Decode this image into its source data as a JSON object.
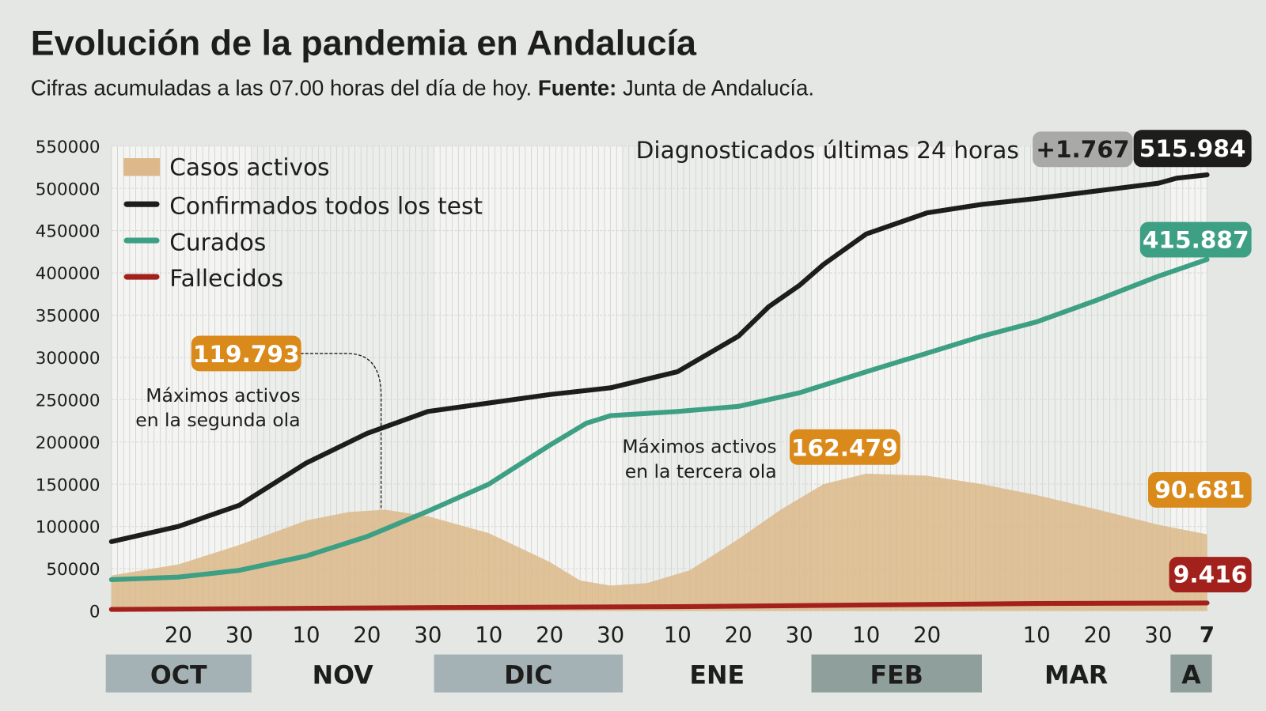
{
  "header": {
    "title": "Evolución de la pandemia en Andalucía",
    "subtitle_text": "Cifras acumuladas a las 07.00 horas del día de hoy. ",
    "subtitle_source_label": "Fuente:",
    "subtitle_source": " Junta de Andalucía."
  },
  "chart_data": {
    "type": "area+line",
    "x_range": [
      "2020-10-09",
      "2021-04-07"
    ],
    "ylim": [
      0,
      550000
    ],
    "y_ticks": [
      "550000",
      "500000",
      "450000",
      "400000",
      "350000",
      "300000",
      "250000",
      "200000",
      "150000",
      "100000",
      "50000",
      "0"
    ],
    "grid": "vertical daily lines, horizontal at each tick",
    "x_ticks": [
      {
        "date": "2020-10-20",
        "label": "20"
      },
      {
        "date": "2020-10-30",
        "label": "30"
      },
      {
        "date": "2020-11-10",
        "label": "10"
      },
      {
        "date": "2020-11-20",
        "label": "20"
      },
      {
        "date": "2020-11-30",
        "label": "30"
      },
      {
        "date": "2020-12-10",
        "label": "10"
      },
      {
        "date": "2020-12-20",
        "label": "20"
      },
      {
        "date": "2020-12-30",
        "label": "30"
      },
      {
        "date": "2021-01-10",
        "label": "10"
      },
      {
        "date": "2021-01-20",
        "label": "20"
      },
      {
        "date": "2021-01-30",
        "label": "30"
      },
      {
        "date": "2021-02-10",
        "label": "10"
      },
      {
        "date": "2021-02-20",
        "label": "20"
      },
      {
        "date": "2021-03-10",
        "label": "10"
      },
      {
        "date": "2021-03-20",
        "label": "20"
      },
      {
        "date": "2021-03-30",
        "label": "30"
      },
      {
        "date": "2021-04-07",
        "label": "7",
        "bold": true
      }
    ],
    "months": [
      {
        "label": "OCT",
        "start": "2020-10-01",
        "end": "2020-10-31",
        "shaded": true
      },
      {
        "label": "NOV",
        "start": "2020-11-01",
        "end": "2020-11-30",
        "shaded": false
      },
      {
        "label": "DIC",
        "start": "2020-12-01",
        "end": "2020-12-31",
        "shaded": true
      },
      {
        "label": "ENE",
        "start": "2021-01-01",
        "end": "2021-01-31",
        "shaded": false
      },
      {
        "label": "FEB",
        "start": "2021-02-01",
        "end": "2021-02-28",
        "shaded": true
      },
      {
        "label": "MAR",
        "start": "2021-03-01",
        "end": "2021-03-31",
        "shaded": false
      },
      {
        "label": "A",
        "start": "2021-04-01",
        "end": "2021-04-07",
        "shaded": true
      }
    ],
    "legend_placement": "top-left",
    "series": [
      {
        "name": "Casos activos",
        "kind": "area",
        "color": "#dcb88a",
        "points": [
          [
            "2020-10-09",
            42000
          ],
          [
            "2020-10-20",
            55000
          ],
          [
            "2020-10-30",
            78000
          ],
          [
            "2020-11-10",
            107000
          ],
          [
            "2020-11-17",
            117000
          ],
          [
            "2020-11-23",
            119793
          ],
          [
            "2020-11-30",
            112000
          ],
          [
            "2020-12-10",
            92000
          ],
          [
            "2020-12-20",
            58000
          ],
          [
            "2020-12-25",
            36000
          ],
          [
            "2020-12-30",
            30000
          ],
          [
            "2021-01-05",
            33000
          ],
          [
            "2021-01-12",
            48000
          ],
          [
            "2021-01-20",
            85000
          ],
          [
            "2021-01-27",
            120000
          ],
          [
            "2021-02-03",
            150000
          ],
          [
            "2021-02-10",
            162479
          ],
          [
            "2021-02-20",
            160000
          ],
          [
            "2021-03-01",
            150000
          ],
          [
            "2021-03-10",
            137000
          ],
          [
            "2021-03-20",
            120000
          ],
          [
            "2021-03-30",
            102000
          ],
          [
            "2021-04-07",
            90681
          ]
        ]
      },
      {
        "name": "Confirmados todos los test",
        "kind": "line",
        "color": "#1d1d1b",
        "points": [
          [
            "2020-10-09",
            82000
          ],
          [
            "2020-10-20",
            100000
          ],
          [
            "2020-10-30",
            125000
          ],
          [
            "2020-11-10",
            175000
          ],
          [
            "2020-11-20",
            210000
          ],
          [
            "2020-11-30",
            236000
          ],
          [
            "2020-12-10",
            246000
          ],
          [
            "2020-12-20",
            256000
          ],
          [
            "2020-12-30",
            264000
          ],
          [
            "2021-01-10",
            283000
          ],
          [
            "2021-01-20",
            325000
          ],
          [
            "2021-01-25",
            360000
          ],
          [
            "2021-01-30",
            385000
          ],
          [
            "2021-02-03",
            410000
          ],
          [
            "2021-02-10",
            446000
          ],
          [
            "2021-02-20",
            471000
          ],
          [
            "2021-03-01",
            481000
          ],
          [
            "2021-03-10",
            488000
          ],
          [
            "2021-03-20",
            497000
          ],
          [
            "2021-03-30",
            506000
          ],
          [
            "2021-04-02",
            512000
          ],
          [
            "2021-04-07",
            515984
          ]
        ]
      },
      {
        "name": "Curados",
        "kind": "line",
        "color": "#3d9f83",
        "points": [
          [
            "2020-10-09",
            37000
          ],
          [
            "2020-10-20",
            40000
          ],
          [
            "2020-10-30",
            48000
          ],
          [
            "2020-11-10",
            65000
          ],
          [
            "2020-11-20",
            88000
          ],
          [
            "2020-11-30",
            118000
          ],
          [
            "2020-12-10",
            150000
          ],
          [
            "2020-12-20",
            196000
          ],
          [
            "2020-12-26",
            222000
          ],
          [
            "2020-12-30",
            231000
          ],
          [
            "2021-01-10",
            236000
          ],
          [
            "2021-01-20",
            242000
          ],
          [
            "2021-01-30",
            258000
          ],
          [
            "2021-02-10",
            283000
          ],
          [
            "2021-02-20",
            305000
          ],
          [
            "2021-03-01",
            325000
          ],
          [
            "2021-03-10",
            342000
          ],
          [
            "2021-03-20",
            368000
          ],
          [
            "2021-03-30",
            396000
          ],
          [
            "2021-04-07",
            415887
          ]
        ]
      },
      {
        "name": "Fallecidos",
        "kind": "line",
        "color": "#a3211c",
        "points": [
          [
            "2020-10-09",
            1800
          ],
          [
            "2020-12-01",
            4000
          ],
          [
            "2021-01-10",
            5000
          ],
          [
            "2021-02-10",
            7000
          ],
          [
            "2021-03-10",
            8800
          ],
          [
            "2021-04-07",
            9416
          ]
        ]
      }
    ],
    "annotations": {
      "peak2_value": "119.793",
      "peak2_line1": "Máximos activos",
      "peak2_line2": "en la segunda ola",
      "peak3_value": "162.479",
      "peak3_line1": "Máximos activos",
      "peak3_line2": "en la tercera ola",
      "daily_label": "Diagnosticados últimas 24 horas",
      "daily_value": "+1.767",
      "confirmed_value": "515.984",
      "recovered_value": "415.887",
      "active_value": "90.681",
      "deaths_value": "9.416"
    },
    "colors": {
      "active_badge": "#d98a1a",
      "recovered_badge": "#3d9f83",
      "confirmed_badge": "#1d1d1b",
      "deaths_badge": "#a3211c",
      "daily_badge": "#a9a9a7"
    }
  }
}
